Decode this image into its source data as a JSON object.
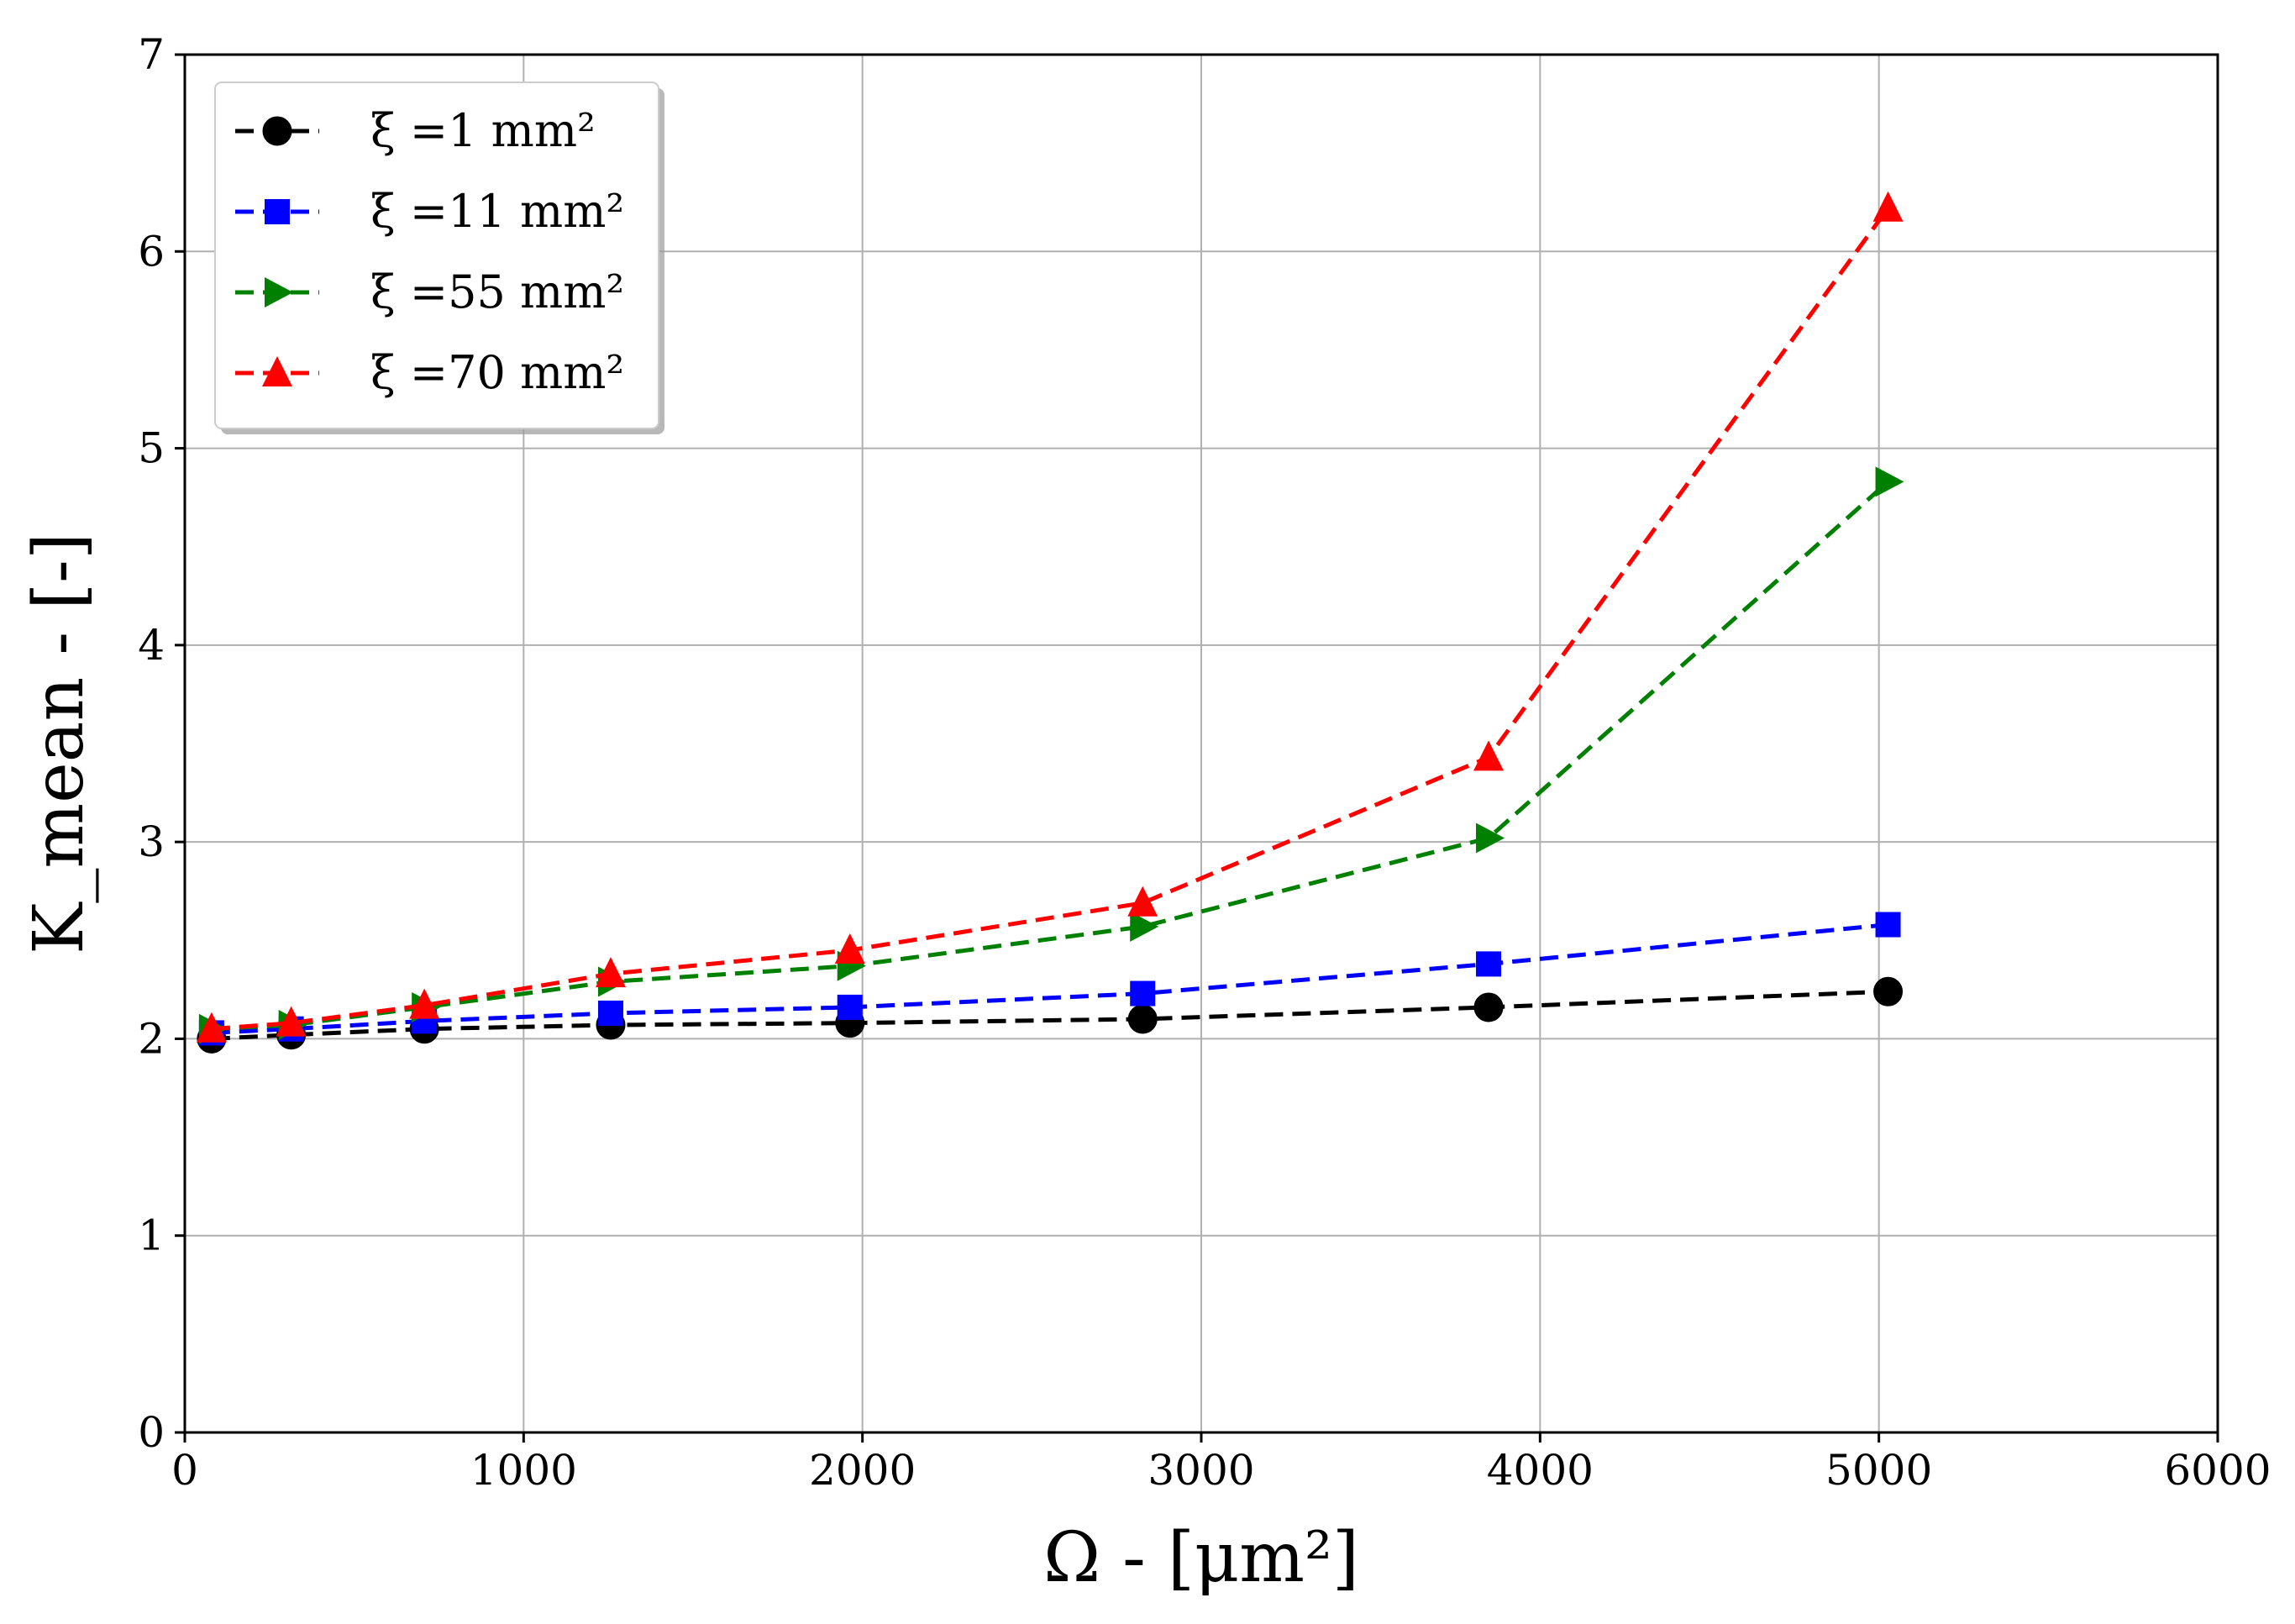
{
  "chart_data": {
    "type": "line",
    "title": "",
    "xlabel": "Ω - [μm²]",
    "ylabel": "K_mean - [-]",
    "xlim": [
      0,
      6000
    ],
    "ylim": [
      0,
      7
    ],
    "xticks": [
      0,
      1000,
      2000,
      3000,
      4000,
      5000,
      6000
    ],
    "yticks": [
      0,
      1,
      2,
      3,
      4,
      5,
      6,
      7
    ],
    "grid": true,
    "legend_position": "top-left",
    "x": [
      79,
      314,
      707,
      1257,
      1963,
      2827,
      3848,
      5027
    ],
    "series": [
      {
        "name": "ξ =1 mm²",
        "color": "#000000",
        "marker": "circle",
        "linestyle": "dashed",
        "values": [
          2.0,
          2.02,
          2.05,
          2.07,
          2.08,
          2.1,
          2.16,
          2.24
        ]
      },
      {
        "name": "ξ =11 mm²",
        "color": "#0000ff",
        "marker": "square",
        "linestyle": "dashed",
        "values": [
          2.03,
          2.05,
          2.09,
          2.13,
          2.16,
          2.23,
          2.38,
          2.58
        ]
      },
      {
        "name": "ξ =55 mm²",
        "color": "#008000",
        "marker": "triangle-right",
        "linestyle": "dashed",
        "values": [
          2.05,
          2.07,
          2.16,
          2.29,
          2.37,
          2.57,
          3.02,
          4.83
        ]
      },
      {
        "name": "ξ =70 mm²",
        "color": "#ff0000",
        "marker": "triangle-up",
        "linestyle": "dashed",
        "values": [
          2.05,
          2.08,
          2.17,
          2.33,
          2.45,
          2.69,
          3.43,
          6.22
        ]
      }
    ]
  }
}
